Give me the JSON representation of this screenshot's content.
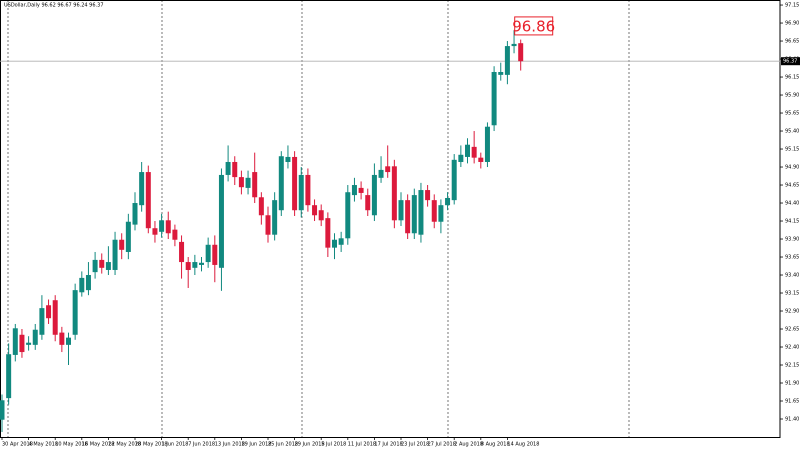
{
  "chart_data": {
    "type": "candlestick",
    "title": "USDollar,Daily 96.62 96.67 96.24 96.37",
    "categories": [
      "30 Apr 2018",
      null,
      null,
      null,
      "4 May 2018",
      null,
      null,
      null,
      "10 May 2018",
      null,
      null,
      null,
      "16 May 2018",
      null,
      null,
      null,
      "22 May 2018",
      null,
      null,
      null,
      "28 May 2018",
      null,
      null,
      null,
      "1 Jun 2018",
      null,
      null,
      null,
      "7 Jun 2018",
      null,
      null,
      null,
      "13 Jun 2018",
      null,
      null,
      null,
      "19 Jun 2018",
      null,
      null,
      null,
      "25 Jun 2018",
      null,
      null,
      null,
      "29 Jun 2018",
      null,
      null,
      null,
      "5 Jul 2018",
      null,
      null,
      null,
      "11 Jul 2018",
      null,
      null,
      null,
      "17 Jul 2018",
      null,
      null,
      null,
      "23 Jul 2018",
      null,
      null,
      null,
      "27 Jul 2018",
      null,
      null,
      null,
      "2 Aug 2018",
      null,
      null,
      null,
      "8 Aug 2018",
      null,
      null,
      null,
      "14 Aug 2018",
      null,
      null
    ],
    "open": [
      91.39,
      91.69,
      92.29,
      92.57,
      92.43,
      92.43,
      92.57,
      92.98,
      93.05,
      92.6,
      92.43,
      92.57,
      93.16,
      93.19,
      93.44,
      93.61,
      93.47,
      93.47,
      93.89,
      93.72,
      94.1,
      94.37,
      94.83,
      94.05,
      94.0,
      94.16,
      94.03,
      93.86,
      93.58,
      93.5,
      93.54,
      93.58,
      93.82,
      93.5,
      94.79,
      94.97,
      94.76,
      94.61,
      94.83,
      94.48,
      94.23,
      93.96,
      94.3,
      94.97,
      95.04,
      94.3,
      94.79,
      94.37,
      94.3,
      94.19,
      93.78,
      93.82,
      93.91,
      94.51,
      94.61,
      94.51,
      94.23,
      94.75,
      94.91,
      94.91,
      94.16,
      94.44,
      93.98,
      93.96,
      94.58,
      94.44,
      94.14,
      94.37,
      94.44,
      94.97,
      95.04,
      95.18,
      95.03,
      94.97,
      95.48,
      96.18,
      96.18,
      96.58,
      96.62
    ],
    "high": [
      91.74,
      92.45,
      92.72,
      92.65,
      92.55,
      92.72,
      93.12,
      93.06,
      93.12,
      92.68,
      92.6,
      93.28,
      93.45,
      93.58,
      93.72,
      93.7,
      93.8,
      94.0,
      93.98,
      94.25,
      94.55,
      94.97,
      94.92,
      94.15,
      94.25,
      94.28,
      94.1,
      93.95,
      93.65,
      93.68,
      93.65,
      93.92,
      93.95,
      94.88,
      95.2,
      95.05,
      94.85,
      94.85,
      95.1,
      94.55,
      94.35,
      94.55,
      95.12,
      95.2,
      95.12,
      94.9,
      94.88,
      94.45,
      94.38,
      94.27,
      93.98,
      94.0,
      94.65,
      94.75,
      94.7,
      94.6,
      94.95,
      95.05,
      95.2,
      95.0,
      94.55,
      94.52,
      94.6,
      94.68,
      94.65,
      94.52,
      94.45,
      94.55,
      95.08,
      95.2,
      95.3,
      95.4,
      95.1,
      95.52,
      96.3,
      96.35,
      96.65,
      96.8,
      96.67
    ],
    "low": [
      91.22,
      91.6,
      92.2,
      92.25,
      92.35,
      92.36,
      92.5,
      92.72,
      92.48,
      92.33,
      92.15,
      92.5,
      93.1,
      93.12,
      93.35,
      93.42,
      93.4,
      93.4,
      93.62,
      93.62,
      94.02,
      94.28,
      93.98,
      93.85,
      93.92,
      93.9,
      93.8,
      93.35,
      93.22,
      93.4,
      93.45,
      93.5,
      93.3,
      93.18,
      94.7,
      94.65,
      94.52,
      94.52,
      94.4,
      94.1,
      93.85,
      93.88,
      94.22,
      94.88,
      94.22,
      94.2,
      94.28,
      94.15,
      94.08,
      93.65,
      93.62,
      93.72,
      93.82,
      94.42,
      94.45,
      94.22,
      94.15,
      94.68,
      94.75,
      94.05,
      94.08,
      93.9,
      93.9,
      93.85,
      94.35,
      94.05,
      93.98,
      94.3,
      94.38,
      94.9,
      94.95,
      94.95,
      94.88,
      94.9,
      95.4,
      96.1,
      96.05,
      96.48,
      96.24
    ],
    "close": [
      91.66,
      92.3,
      92.66,
      92.33,
      92.46,
      92.64,
      92.94,
      92.8,
      92.57,
      92.43,
      92.53,
      93.19,
      93.36,
      93.4,
      93.61,
      93.5,
      93.58,
      93.89,
      93.75,
      94.14,
      94.4,
      94.83,
      94.05,
      93.96,
      94.16,
      93.98,
      93.89,
      93.58,
      93.47,
      93.58,
      93.57,
      93.82,
      93.54,
      94.79,
      94.97,
      94.76,
      94.62,
      94.75,
      94.48,
      94.23,
      93.96,
      94.44,
      95.05,
      95.04,
      94.3,
      94.79,
      94.37,
      94.23,
      94.16,
      93.78,
      93.89,
      93.91,
      94.55,
      94.65,
      94.54,
      94.3,
      94.79,
      94.86,
      94.83,
      94.16,
      94.44,
      93.98,
      94.51,
      94.58,
      94.44,
      94.14,
      94.37,
      94.47,
      95.0,
      95.07,
      95.21,
      95.03,
      94.97,
      95.46,
      96.22,
      96.22,
      96.58,
      96.61,
      96.37
    ],
    "up_color": "#11897f",
    "down_color": "#dc1a3c",
    "current_price": 96.37,
    "price_label": 96.86,
    "price_label_color": "#e8202a",
    "ylim": [
      91.15,
      97.22
    ],
    "yticks": [
      {
        "value": 91.4,
        "label": "91.40"
      },
      {
        "value": 91.65,
        "label": "91.65"
      },
      {
        "value": 91.9,
        "label": "91.90"
      },
      {
        "value": 92.15,
        "label": "92.15"
      },
      {
        "value": 92.4,
        "label": "92.40"
      },
      {
        "value": 92.65,
        "label": "92.65"
      },
      {
        "value": 92.9,
        "label": "92.90"
      },
      {
        "value": 93.15,
        "label": "93.15"
      },
      {
        "value": 93.4,
        "label": "93.40"
      },
      {
        "value": 93.65,
        "label": "93.65"
      },
      {
        "value": 93.9,
        "label": "93.90"
      },
      {
        "value": 94.15,
        "label": "94.15"
      },
      {
        "value": 94.4,
        "label": "94.40"
      },
      {
        "value": 94.65,
        "label": "94.65"
      },
      {
        "value": 94.9,
        "label": "94.90"
      },
      {
        "value": 95.15,
        "label": "95.15"
      },
      {
        "value": 95.4,
        "label": "95.40"
      },
      {
        "value": 95.65,
        "label": "95.65"
      },
      {
        "value": 95.9,
        "label": "95.90"
      },
      {
        "value": 96.15,
        "label": "96.15"
      },
      {
        "value": 96.4,
        "label": "96.40"
      },
      {
        "value": 96.65,
        "label": "96.65"
      },
      {
        "value": 96.9,
        "label": "96.90"
      },
      {
        "value": 97.15,
        "label": "97.15"
      }
    ]
  }
}
